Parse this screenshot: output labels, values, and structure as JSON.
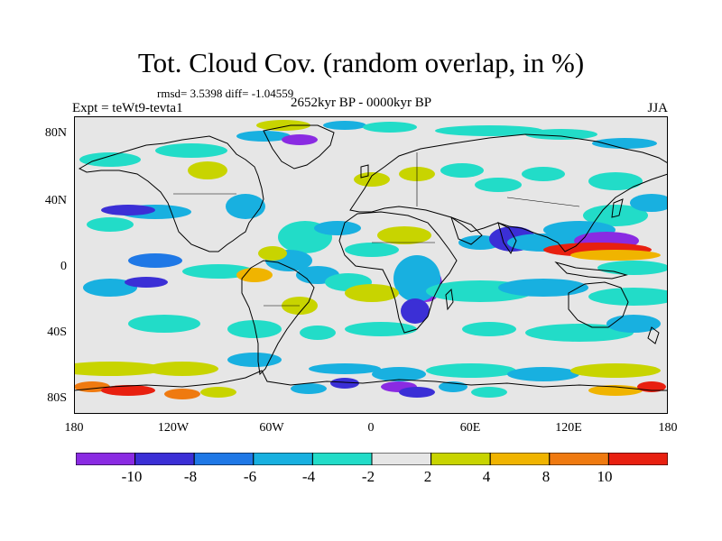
{
  "title": "Tot. Cloud Cov. (random overlap, in %)",
  "stats": "rmsd= 3.5398 diff= -1.04559",
  "left_label": "Expt = teWt9-tevta1",
  "center_label": "2652kyr BP - 0000kyr BP",
  "right_label": "JJA",
  "y_ticks": [
    "80N",
    "40N",
    "0",
    "40S",
    "80S"
  ],
  "x_ticks": [
    "180",
    "120W",
    "60W",
    "0",
    "60E",
    "120E",
    "180"
  ],
  "colorbar": {
    "labels": [
      "-10",
      "-8",
      "-6",
      "-4",
      "-2",
      "2",
      "4",
      "8",
      "10"
    ],
    "colors": [
      "#8a2be2",
      "#3b2fd6",
      "#1f78e6",
      "#18b0e0",
      "#22dcc8",
      "#e6e6e6",
      "#c8d400",
      "#f0b400",
      "#ef7a10",
      "#e82010"
    ]
  },
  "map": {
    "background": "#e6e6e6",
    "coastline_color": "#000000",
    "border_color": "#000000"
  }
}
